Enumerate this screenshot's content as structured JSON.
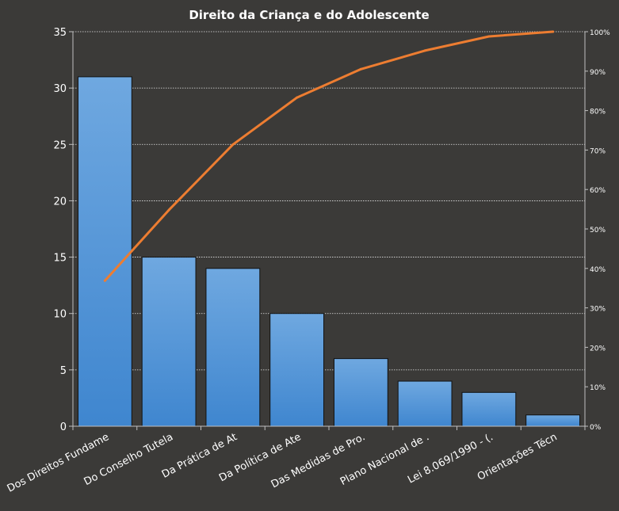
{
  "chart_data": {
    "type": "bar",
    "title": "Direito  da Criança e do Adolescente",
    "categories": [
      "Dos Direitos Fundame",
      "Do Conselho Tutela",
      "Da Prática de At",
      "Da Política de Ate",
      "Das Medidas de Pro.",
      "Plano Nacional de  .",
      "Lei 8.069/1990 - (.",
      "Orientações Técn"
    ],
    "series": [
      {
        "type": "bar",
        "values": [
          31,
          15,
          14,
          10,
          6,
          4,
          3,
          1
        ]
      },
      {
        "type": "line",
        "axis": "right",
        "values": [
          36.9,
          54.8,
          71.4,
          83.3,
          90.5,
          95.2,
          98.8,
          100
        ]
      }
    ],
    "ylim": [
      0,
      35
    ],
    "y_ticks": [
      0,
      5,
      10,
      15,
      20,
      25,
      30,
      35
    ],
    "y2lim": [
      0,
      100
    ],
    "y2_ticks": [
      "0%",
      "10%",
      "20%",
      "30%",
      "40%",
      "50%",
      "60%",
      "70%",
      "80%",
      "90%",
      "100%"
    ],
    "grid": true,
    "legend": "none",
    "colors": {
      "bar": "#4a90d9",
      "line": "#ed7d31",
      "background": "#3b3a38",
      "text": "#ffffff"
    }
  }
}
